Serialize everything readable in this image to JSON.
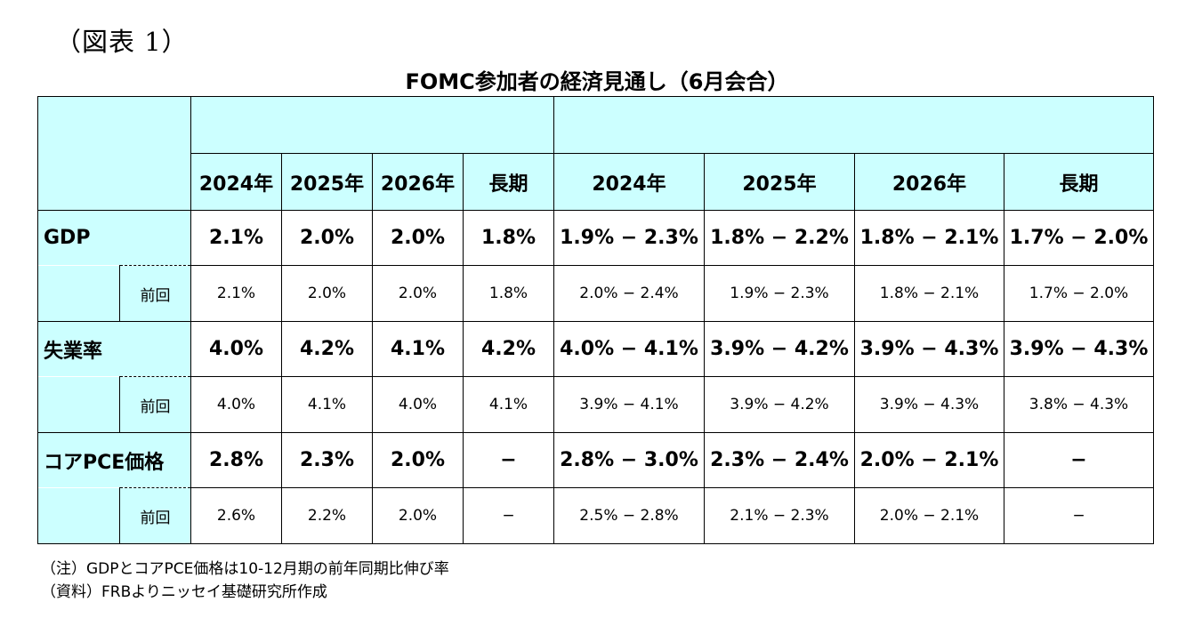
{
  "figure_label": "（図表 1）",
  "title": "FOMC参加者の経済見通し（6月会合）",
  "header": {
    "group1": "",
    "group2": "",
    "years": [
      "2024年",
      "2025年",
      "2026年",
      "長期",
      "2024年",
      "2025年",
      "2026年",
      "長期"
    ]
  },
  "rows": [
    {
      "label": "GDP",
      "main": [
        "2.1%",
        "2.0%",
        "2.0%",
        "1.8%",
        "1.9% − 2.3%",
        "1.8% − 2.2%",
        "1.8% − 2.1%",
        "1.7% − 2.0%"
      ],
      "prev_label": "前回",
      "prev": [
        "2.1%",
        "2.0%",
        "2.0%",
        "1.8%",
        "2.0% − 2.4%",
        "1.9% − 2.3%",
        "1.8% − 2.1%",
        "1.7% − 2.0%"
      ]
    },
    {
      "label": "失業率",
      "main": [
        "4.0%",
        "4.2%",
        "4.1%",
        "4.2%",
        "4.0% − 4.1%",
        "3.9% − 4.2%",
        "3.9% − 4.3%",
        "3.9% − 4.3%"
      ],
      "prev_label": "前回",
      "prev": [
        "4.0%",
        "4.1%",
        "4.0%",
        "4.1%",
        "3.9% − 4.1%",
        "3.9% − 4.2%",
        "3.9% − 4.3%",
        "3.8% − 4.3%"
      ]
    },
    {
      "label": "コアPCE価格",
      "main": [
        "2.8%",
        "2.3%",
        "2.0%",
        "−",
        "2.8% − 3.0%",
        "2.3% − 2.4%",
        "2.0% − 2.1%",
        "−"
      ],
      "prev_label": "前回",
      "prev": [
        "2.6%",
        "2.2%",
        "2.0%",
        "−",
        "2.5% − 2.8%",
        "2.1% − 2.3%",
        "2.0% − 2.1%",
        "−"
      ]
    }
  ],
  "notes": {
    "note1": "（注）GDPとコアPCE価格は10-12月期の前年同期比伸び率",
    "note2": "（資料）FRBよりニッセイ基礎研究所作成"
  }
}
